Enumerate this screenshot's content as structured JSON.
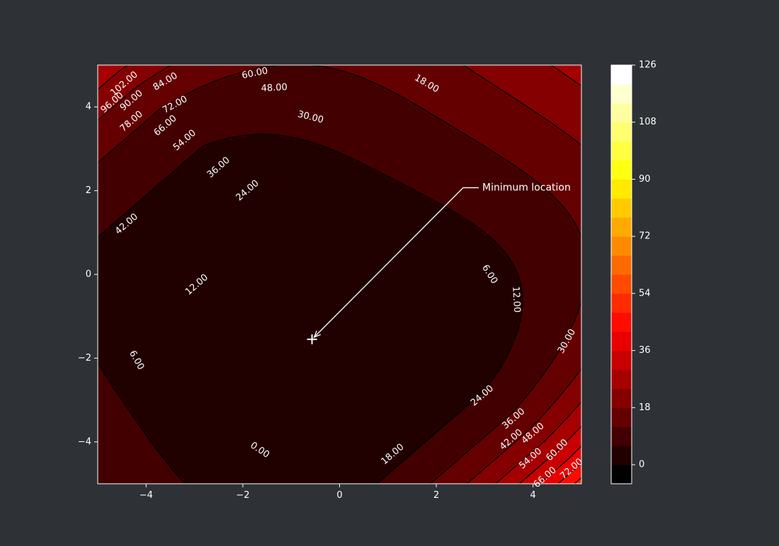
{
  "chart_data": {
    "type": "heatmap",
    "subtype": "filled-contour",
    "title": "",
    "xlabel": "",
    "ylabel": "",
    "xlim": [
      -5,
      5
    ],
    "ylim": [
      -5,
      5
    ],
    "x_ticks": [
      -4,
      -2,
      0,
      2,
      4
    ],
    "y_ticks": [
      -4,
      -2,
      0,
      2,
      4
    ],
    "x_tick_labels": [
      "−4",
      "−2",
      "0",
      "2",
      "4"
    ],
    "y_tick_labels": [
      "−4",
      "−2",
      "0",
      "2",
      "4"
    ],
    "colormap": "hot",
    "grid": false,
    "contour_levels_step": 6,
    "contour_line_levels": [
      0,
      6,
      12,
      18,
      24,
      30,
      36,
      42,
      48,
      54,
      60,
      66,
      72,
      78,
      84,
      90,
      96,
      102
    ],
    "colorbar": {
      "range": [
        -6,
        126
      ],
      "boundaries": [
        -6,
        0,
        6,
        12,
        18,
        24,
        30,
        36,
        42,
        48,
        54,
        60,
        66,
        72,
        78,
        84,
        90,
        96,
        102,
        108,
        114,
        120,
        126
      ],
      "ticks": [
        0,
        18,
        36,
        54,
        72,
        90,
        108,
        126
      ],
      "tick_labels": [
        "0",
        "18",
        "36",
        "54",
        "72",
        "90",
        "108",
        "126"
      ]
    },
    "contour_labels": [
      {
        "text": "0.00",
        "x": -1.65,
        "y": -4.2
      },
      {
        "text": "6.00",
        "x": -4.2,
        "y": -2.05
      },
      {
        "text": "12.00",
        "x": -2.95,
        "y": -0.25
      },
      {
        "text": "24.00",
        "x": -1.9,
        "y": 2.0
      },
      {
        "text": "36.00",
        "x": -2.5,
        "y": 2.55
      },
      {
        "text": "42.00",
        "x": -4.4,
        "y": 1.2
      },
      {
        "text": "54.00",
        "x": -3.2,
        "y": 3.2
      },
      {
        "text": "66.00",
        "x": -3.6,
        "y": 3.55
      },
      {
        "text": "72.00",
        "x": -3.4,
        "y": 4.05
      },
      {
        "text": "78.00",
        "x": -4.3,
        "y": 3.65
      },
      {
        "text": "90.00",
        "x": -4.3,
        "y": 4.15
      },
      {
        "text": "84.00",
        "x": -3.6,
        "y": 4.6
      },
      {
        "text": "96.00",
        "x": -4.7,
        "y": 4.1
      },
      {
        "text": "102.00",
        "x": -4.45,
        "y": 4.55
      },
      {
        "text": "60.00",
        "x": -1.75,
        "y": 4.8
      },
      {
        "text": "48.00",
        "x": -1.35,
        "y": 4.45
      },
      {
        "text": "30.00",
        "x": -0.6,
        "y": 3.75
      },
      {
        "text": "18.00",
        "x": 1.8,
        "y": 4.55
      },
      {
        "text": "6.00",
        "x": 3.1,
        "y": 0.0
      },
      {
        "text": "12.00",
        "x": 3.65,
        "y": -0.6
      },
      {
        "text": "30.00",
        "x": 4.7,
        "y": -1.6
      },
      {
        "text": "24.00",
        "x": 2.95,
        "y": -2.9
      },
      {
        "text": "36.00",
        "x": 3.6,
        "y": -3.45
      },
      {
        "text": "42.00",
        "x": 3.55,
        "y": -3.95
      },
      {
        "text": "48.00",
        "x": 4.0,
        "y": -3.8
      },
      {
        "text": "54.00",
        "x": 3.95,
        "y": -4.4
      },
      {
        "text": "60.00",
        "x": 4.5,
        "y": -4.2
      },
      {
        "text": "66.00",
        "x": 4.25,
        "y": -4.85
      },
      {
        "text": "72.00",
        "x": 4.8,
        "y": -4.65
      },
      {
        "text": "18.00",
        "x": 1.1,
        "y": -4.3
      }
    ],
    "marker": {
      "symbol": "+",
      "x": -0.57,
      "y": -1.55
    },
    "annotation": {
      "text": "Minimum location",
      "xy": [
        -0.57,
        -1.55
      ],
      "text_xy": [
        2.95,
        2.07
      ]
    }
  }
}
